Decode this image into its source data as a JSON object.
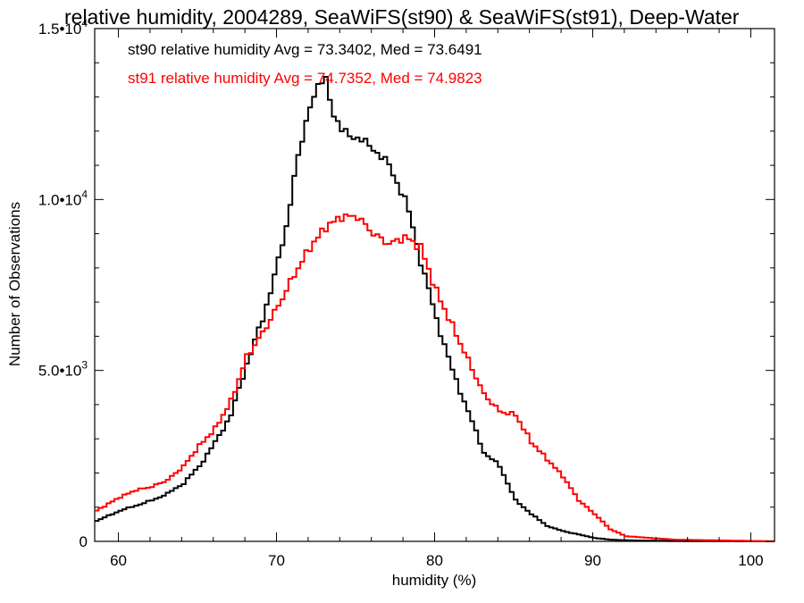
{
  "chart_data": {
    "type": "line",
    "title": "relative humidity, 2004289, SeaWiFS(st90) & SeaWiFS(st91), Deep-Water",
    "xlabel": "humidity (%)",
    "ylabel": "Number of Observations",
    "xlim": [
      58.5,
      101.5
    ],
    "ylim": [
      0,
      15000
    ],
    "x_ticks": [
      {
        "value": 60,
        "label": "60"
      },
      {
        "value": 70,
        "label": "70"
      },
      {
        "value": 80,
        "label": "80"
      },
      {
        "value": 90,
        "label": "90"
      },
      {
        "value": 100,
        "label": "100"
      }
    ],
    "y_ticks": [
      {
        "value": 0,
        "mantissa": "0",
        "exp": ""
      },
      {
        "value": 5000,
        "mantissa": "5.0•10",
        "exp": "3"
      },
      {
        "value": 10000,
        "mantissa": "1.0•10",
        "exp": "4"
      },
      {
        "value": 15000,
        "mantissa": "1.5•10",
        "exp": "4"
      }
    ],
    "grid": false,
    "legend_position": "top-left",
    "series": [
      {
        "name": "st90",
        "color": "#000000",
        "annotation": "st90 relative humidity Avg = 73.3402, Med = 73.6491",
        "x": [
          58.5,
          60,
          62,
          63,
          64,
          65,
          66,
          67,
          68,
          69,
          70,
          70.5,
          71,
          71.5,
          72,
          72.5,
          73,
          73.5,
          74,
          75,
          76,
          77,
          77.5,
          78,
          78.5,
          79,
          80,
          81,
          82,
          83,
          84,
          85,
          86,
          87,
          88,
          89,
          90,
          91,
          92,
          95,
          101.5
        ],
        "y": [
          600,
          900,
          1200,
          1400,
          1700,
          2200,
          2900,
          3700,
          5200,
          6500,
          8200,
          9200,
          10700,
          11700,
          12800,
          13300,
          13500,
          12500,
          12000,
          11800,
          11500,
          11000,
          10500,
          10000,
          9200,
          8200,
          6500,
          5000,
          3800,
          2600,
          2200,
          1200,
          800,
          450,
          300,
          200,
          100,
          50,
          30,
          10,
          0
        ]
      },
      {
        "name": "st91",
        "color": "#ff0000",
        "annotation": "st91 relative humidity Avg = 74.7352, Med = 74.9823",
        "x": [
          58.5,
          60,
          61,
          62,
          63,
          64,
          65,
          66,
          67,
          68,
          69,
          70,
          71,
          72,
          73,
          74,
          75,
          76,
          77,
          78,
          79,
          80,
          81,
          82,
          83,
          84,
          85,
          86,
          87,
          88,
          89,
          90,
          91,
          92,
          95,
          101.5
        ],
        "y": [
          900,
          1300,
          1500,
          1600,
          1800,
          2200,
          2800,
          3300,
          4100,
          5400,
          6100,
          6900,
          7800,
          8600,
          9200,
          9500,
          9500,
          9000,
          8700,
          8900,
          8600,
          7300,
          6300,
          5300,
          4300,
          3800,
          3700,
          2900,
          2400,
          1900,
          1200,
          800,
          350,
          150,
          50,
          0
        ]
      }
    ]
  }
}
